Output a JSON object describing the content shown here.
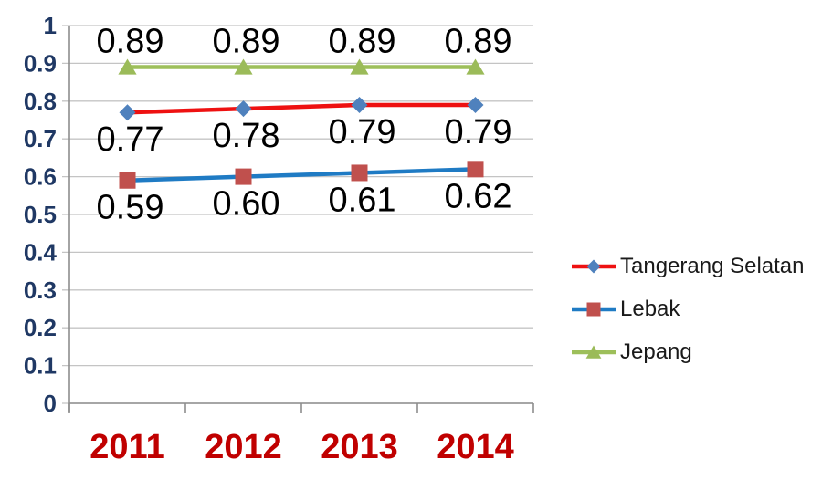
{
  "chart_data": {
    "type": "line",
    "title": "",
    "categories": [
      "2011",
      "2012",
      "2013",
      "2014"
    ],
    "series": [
      {
        "name": "Tangerang Selatan",
        "values": [
          0.77,
          0.78,
          0.79,
          0.79
        ],
        "data_labels": [
          "0.77",
          "0.78",
          "0.79",
          "0.79"
        ],
        "line_color": "#ee1111",
        "marker": "diamond",
        "marker_color": "#4f81bd",
        "label_position": "below"
      },
      {
        "name": "Lebak",
        "values": [
          0.59,
          0.6,
          0.61,
          0.62
        ],
        "data_labels": [
          "0.59",
          "0.60",
          "0.61",
          "0.62"
        ],
        "line_color": "#1f7bc4",
        "marker": "square",
        "marker_color": "#c0504d",
        "label_position": "below"
      },
      {
        "name": "Jepang",
        "values": [
          0.89,
          0.89,
          0.89,
          0.89
        ],
        "data_labels": [
          "0.89",
          "0.89",
          "0.89",
          "0.89"
        ],
        "line_color": "#9dbf5a",
        "marker": "triangle",
        "marker_color": "#9bbb59",
        "label_position": "above"
      }
    ],
    "ylim": [
      0,
      1
    ],
    "y_ticks": [
      "0",
      "0.1",
      "0.2",
      "0.3",
      "0.4",
      "0.5",
      "0.6",
      "0.7",
      "0.8",
      "0.9",
      "1"
    ],
    "grid": true,
    "legend_position": "right",
    "xlabel": "",
    "ylabel": "",
    "style": {
      "y_tick_label_color": "#1f3864",
      "x_tick_label_color": "#c00000",
      "data_label_color": "#000000",
      "gridline_color": "#c4c4c4",
      "axis_color": "#8e8e8e",
      "legend_text_color": "#1a1a1a",
      "background_color": "#ffffff"
    }
  }
}
